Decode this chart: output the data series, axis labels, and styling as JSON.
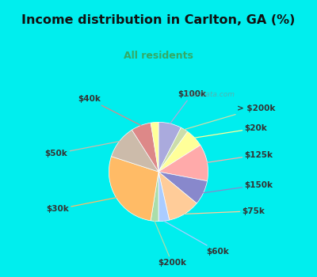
{
  "title": "Income distribution in Carlton, GA (%)",
  "subtitle": "All residents",
  "title_color": "#111111",
  "subtitle_color": "#33aa66",
  "bg_cyan": "#00eeee",
  "bg_chart_grad_start": "#e8f8f0",
  "bg_chart_grad_end": "#ffffff",
  "watermark": "City-Data.com",
  "slices": [
    {
      "label": "$100k",
      "value": 7.5,
      "color": "#aaaadd"
    },
    {
      "label": "> $200k",
      "value": 2.5,
      "color": "#ccddaa"
    },
    {
      "label": "$20k",
      "value": 6.0,
      "color": "#ffff99"
    },
    {
      "label": "$125k",
      "value": 12.0,
      "color": "#ffaaaa"
    },
    {
      "label": "$150k",
      "value": 8.0,
      "color": "#8888cc"
    },
    {
      "label": "$75k",
      "value": 10.5,
      "color": "#ffcc99"
    },
    {
      "label": "$60k",
      "value": 3.5,
      "color": "#aaccff"
    },
    {
      "label": "$200k",
      "value": 2.5,
      "color": "#aaddaa"
    },
    {
      "label": "$30k",
      "value": 27.5,
      "color": "#ffbb66"
    },
    {
      "label": "$50k",
      "value": 11.0,
      "color": "#ccbbaa"
    },
    {
      "label": "$40k",
      "value": 6.5,
      "color": "#dd8888"
    },
    {
      "label": "",
      "value": 2.5,
      "color": "#ffff99"
    }
  ],
  "label_fontsize": 7.5,
  "label_color": "#333333",
  "label_fontweight": "bold"
}
